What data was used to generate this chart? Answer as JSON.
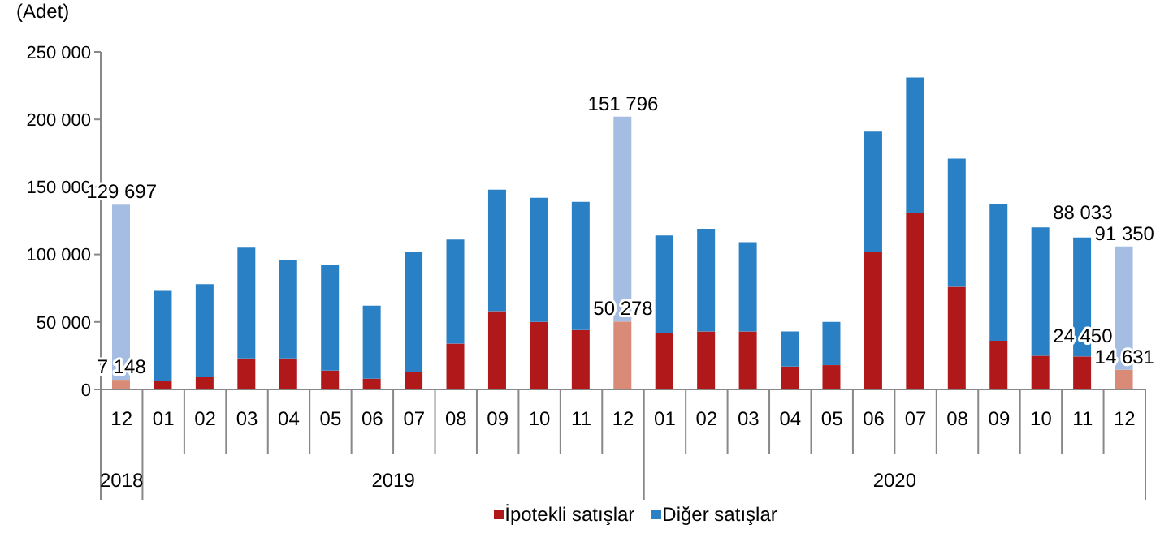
{
  "chart_data": {
    "type": "bar",
    "stacked": true,
    "ylabel": "(Adet)",
    "categories": [
      "12",
      "01",
      "02",
      "03",
      "04",
      "05",
      "06",
      "07",
      "08",
      "09",
      "10",
      "11",
      "12",
      "01",
      "02",
      "03",
      "04",
      "05",
      "06",
      "07",
      "08",
      "09",
      "10",
      "11",
      "12"
    ],
    "annotations": [
      "2018",
      "2019",
      "2020"
    ],
    "series": [
      {
        "name": "İpotekli satışlar",
        "color": "#b0181a",
        "colors": [
          "#d98b78",
          "#b0181a",
          "#b0181a",
          "#b0181a",
          "#b0181a",
          "#b0181a",
          "#b0181a",
          "#b0181a",
          "#b0181a",
          "#b0181a",
          "#b0181a",
          "#b0181a",
          "#d98b78",
          "#b0181a",
          "#b0181a",
          "#b0181a",
          "#b0181a",
          "#b0181a",
          "#b0181a",
          "#b0181a",
          "#b0181a",
          "#b0181a",
          "#b0181a",
          "#b0181a",
          "#d98b78"
        ],
        "values": [
          7148,
          6000,
          9000,
          23000,
          23000,
          14000,
          8000,
          13000,
          34000,
          58000,
          50000,
          44000,
          50278,
          42000,
          43000,
          43000,
          17000,
          18000,
          102000,
          131000,
          76000,
          36000,
          25000,
          24450,
          14631
        ],
        "value_labels": [
          "7 148",
          null,
          null,
          null,
          null,
          null,
          null,
          null,
          null,
          null,
          null,
          null,
          "50 278",
          null,
          null,
          null,
          null,
          null,
          null,
          null,
          null,
          null,
          null,
          "24 450",
          "14 631"
        ]
      },
      {
        "name": "Diğer satışlar",
        "color": "#2a80c4",
        "colors": [
          "#a5bde3",
          "#2a80c4",
          "#2a80c4",
          "#2a80c4",
          "#2a80c4",
          "#2a80c4",
          "#2a80c4",
          "#2a80c4",
          "#2a80c4",
          "#2a80c4",
          "#2a80c4",
          "#2a80c4",
          "#a5bde3",
          "#2a80c4",
          "#2a80c4",
          "#2a80c4",
          "#2a80c4",
          "#2a80c4",
          "#2a80c4",
          "#2a80c4",
          "#2a80c4",
          "#2a80c4",
          "#2a80c4",
          "#2a80c4",
          "#a5bde3"
        ],
        "values": [
          129697,
          67000,
          69000,
          82000,
          73000,
          78000,
          54000,
          89000,
          77000,
          90000,
          92000,
          95000,
          151796,
          72000,
          76000,
          66000,
          26000,
          32000,
          89000,
          100000,
          95000,
          101000,
          95000,
          88033,
          91350
        ],
        "value_labels": [
          "129 697",
          null,
          null,
          null,
          null,
          null,
          null,
          null,
          null,
          null,
          null,
          null,
          "151 796",
          null,
          null,
          null,
          null,
          null,
          null,
          null,
          null,
          null,
          null,
          "88 033",
          "91 350"
        ]
      }
    ],
    "ylim": [
      0,
      250000
    ],
    "yticks": [
      {
        "value": 0,
        "label": "0"
      },
      {
        "value": 50000,
        "label": "50 000"
      },
      {
        "value": 100000,
        "label": "100 000"
      },
      {
        "value": 150000,
        "label": "150 000"
      },
      {
        "value": 200000,
        "label": "200 000"
      },
      {
        "value": 250000,
        "label": "250 000"
      }
    ],
    "grid": false,
    "legend": "bottom"
  }
}
